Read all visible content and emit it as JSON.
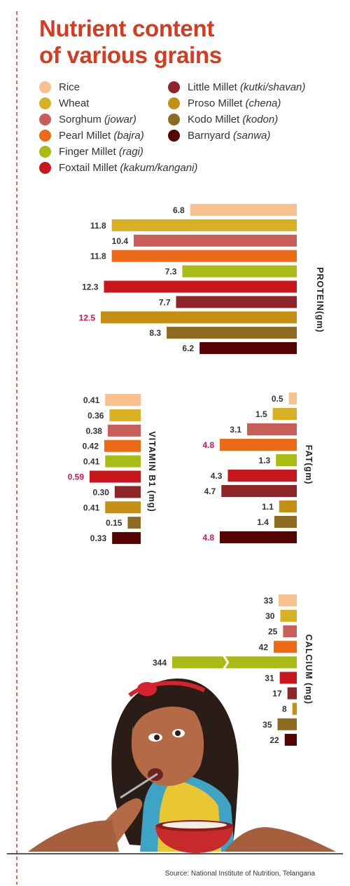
{
  "title_lines": [
    "Nutrient content",
    "of various grains"
  ],
  "source": "Source: National Institute of Nutrition, Telangana",
  "colors": {
    "title": "#d93a1f",
    "highlight_label": "#d6164f",
    "divider": "#d93a1f"
  },
  "legend": [
    {
      "name": "Rice",
      "local": "",
      "color": "#f8c08e"
    },
    {
      "name": "Wheat",
      "local": "",
      "color": "#d8b024"
    },
    {
      "name": "Sorghum",
      "local": "(jowar)",
      "color": "#c85e5a"
    },
    {
      "name": "Pearl Millet",
      "local": "(bajra)",
      "color": "#ec6a16"
    },
    {
      "name": "Finger Millet",
      "local": "(ragi)",
      "color": "#a9bb15"
    },
    {
      "name": "Foxtail Millet",
      "local": "(kakum/kangani)",
      "color": "#c8161d"
    },
    {
      "name": "Little Millet",
      "local": "(kutki/shavan)",
      "color": "#8e2528"
    },
    {
      "name": "Proso Millet",
      "local": "(chena)",
      "color": "#c48f12"
    },
    {
      "name": "Kodo Millet",
      "local": "(kodon)",
      "color": "#8d6a20"
    },
    {
      "name": "Barnyard",
      "local": "(sanwa)",
      "color": "#560505"
    }
  ],
  "chart_data": [
    {
      "type": "bar",
      "orientation": "horizontal",
      "ylabel": "PROTEIN(gm)",
      "categories": [
        "Rice",
        "Wheat",
        "Sorghum",
        "Pearl Millet",
        "Finger Millet",
        "Foxtail Millet",
        "Little Millet",
        "Proso Millet",
        "Kodo Millet",
        "Barnyard"
      ],
      "values": [
        6.8,
        11.8,
        10.4,
        11.8,
        7.3,
        12.3,
        7.7,
        12.5,
        8.3,
        6.2
      ],
      "labels": [
        "6.8",
        "11.8",
        "10.4",
        "11.8",
        "7.3",
        "12.3",
        "7.7",
        "12.5",
        "8.3",
        "6.2"
      ],
      "highlight": "Proso Millet"
    },
    {
      "type": "bar",
      "orientation": "horizontal",
      "ylabel": "VITAMIN B1 (mg)",
      "categories": [
        "Rice",
        "Wheat",
        "Sorghum",
        "Pearl Millet",
        "Finger Millet",
        "Foxtail Millet",
        "Little Millet",
        "Proso Millet",
        "Kodo Millet",
        "Barnyard"
      ],
      "values": [
        0.41,
        0.36,
        0.38,
        0.42,
        0.41,
        0.59,
        0.3,
        0.41,
        0.15,
        0.33
      ],
      "labels": [
        "0.41",
        "0.36",
        "0.38",
        "0.42",
        "0.41",
        "0.59",
        "0.30",
        "0.41",
        "0.15",
        "0.33"
      ],
      "highlight": "Foxtail Millet"
    },
    {
      "type": "bar",
      "orientation": "horizontal",
      "ylabel": "FAT(gm)",
      "categories": [
        "Rice",
        "Wheat",
        "Sorghum",
        "Pearl Millet",
        "Finger Millet",
        "Foxtail Millet",
        "Little Millet",
        "Proso Millet",
        "Kodo Millet",
        "Barnyard"
      ],
      "values": [
        0.5,
        1.5,
        3.1,
        4.8,
        1.3,
        4.3,
        4.7,
        1.1,
        1.4,
        4.8
      ],
      "labels": [
        "0.5",
        "1.5",
        "3.1",
        "4.8",
        "1.3",
        "4.3",
        "4.7",
        "1.1",
        "1.4",
        "4.8"
      ],
      "highlight": [
        "Pearl Millet",
        "Barnyard"
      ]
    },
    {
      "type": "bar",
      "orientation": "horizontal",
      "ylabel": "CALCIUM (mg)",
      "categories": [
        "Rice",
        "Wheat",
        "Sorghum",
        "Pearl Millet",
        "Finger Millet",
        "Foxtail Millet",
        "Little Millet",
        "Proso Millet",
        "Kodo Millet",
        "Barnyard"
      ],
      "values": [
        33,
        30,
        25,
        42,
        344,
        31,
        17,
        8,
        35,
        22
      ],
      "labels": [
        "33",
        "30",
        "25",
        "42",
        "344",
        "31",
        "17",
        "8",
        "35",
        "22"
      ],
      "broken_axis_bar": "Finger Millet"
    }
  ]
}
